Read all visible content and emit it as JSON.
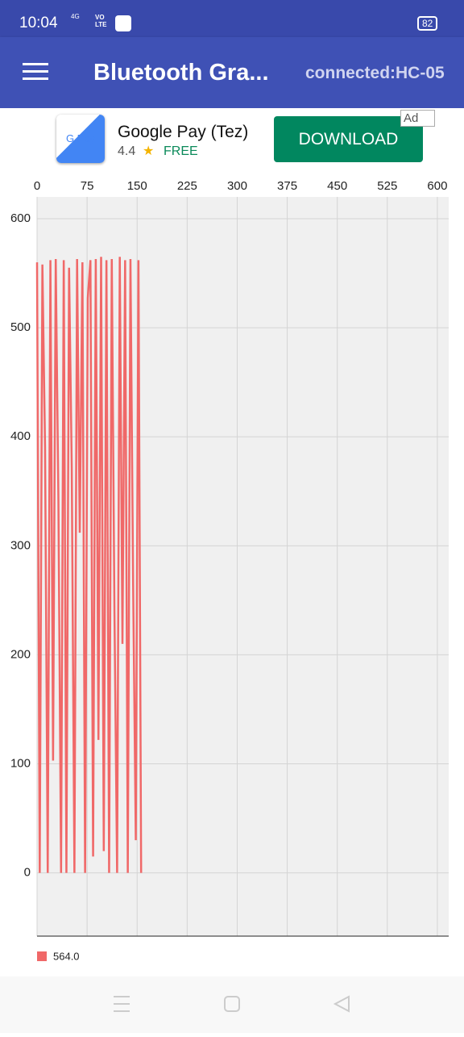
{
  "status_bar": {
    "time": "10:04",
    "network": "4G",
    "volte": "VO LTE",
    "battery": "82"
  },
  "app_bar": {
    "title": "Bluetooth Gra...",
    "status": "connected:HC-05"
  },
  "ad": {
    "icon_text": "G Pay",
    "app_name": "Google Pay (Tez)",
    "rating": "4.4",
    "price": "FREE",
    "button": "DOWNLOAD",
    "badge": "Ad"
  },
  "chart_data": {
    "type": "line",
    "x": [
      0,
      4,
      8,
      12,
      16,
      20,
      24,
      28,
      32,
      36,
      40,
      44,
      48,
      52,
      56,
      60,
      64,
      68,
      72,
      76,
      80,
      84,
      88,
      92,
      96,
      100,
      104,
      108,
      112,
      116,
      120,
      124,
      128,
      132,
      136,
      140,
      144,
      148,
      152,
      156
    ],
    "series": [
      {
        "name": "564.0",
        "color": "#f06868",
        "values": [
          560,
          0,
          558,
          390,
          0,
          562,
          103,
          563,
          342,
          0,
          562,
          0,
          555,
          372,
          0,
          563,
          312,
          560,
          0,
          527,
          562,
          15,
          563,
          122,
          565,
          20,
          562,
          0,
          563,
          240,
          0,
          565,
          210,
          562,
          0,
          563,
          265,
          30,
          562,
          0
        ]
      }
    ],
    "xlim": [
      0,
      617
    ],
    "xticks": [
      0,
      75,
      150,
      225,
      300,
      375,
      450,
      525,
      600
    ],
    "ylim": [
      -58,
      620
    ],
    "yticks": [
      0,
      100,
      200,
      300,
      400,
      500,
      600
    ],
    "grid": true,
    "legend": "bottom-left"
  }
}
